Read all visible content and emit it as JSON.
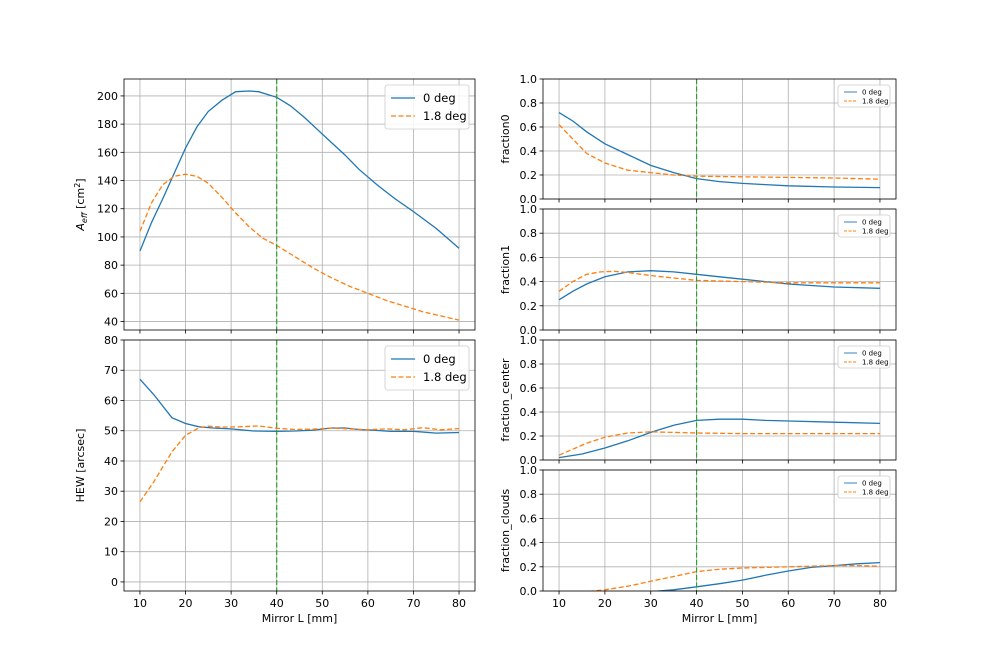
{
  "colors": {
    "series_0deg": "#1f77b4",
    "series_1p8deg": "#ff7f0e",
    "vline": "#2ca02c",
    "grid": "#b0b0b0"
  },
  "chart_data": [
    {
      "id": "aeff",
      "type": "line",
      "ylabel_main": "A",
      "ylabel_sub": "eff",
      "ylabel_unit_pre": " [cm",
      "ylabel_unit_sup": "2",
      "ylabel_unit_post": "]",
      "xlabel": "",
      "xlim": [
        6.5,
        83.5
      ],
      "ylim": [
        34,
        212
      ],
      "xticks": [
        10,
        20,
        30,
        40,
        50,
        60,
        70,
        80
      ],
      "yticks": [
        40,
        60,
        80,
        100,
        120,
        140,
        160,
        180,
        200
      ],
      "show_xticklabels": false,
      "vline_x": 40,
      "grid": true,
      "legend": "top-right",
      "series": [
        {
          "name": "0 deg",
          "style": "solid",
          "x": [
            10,
            12.5,
            15,
            17.5,
            20,
            22.5,
            25,
            28,
            31,
            34,
            36,
            38,
            40,
            43,
            46,
            49,
            52,
            55,
            58,
            62,
            66,
            70,
            75,
            80
          ],
          "y": [
            90,
            110,
            127,
            145,
            163,
            178,
            189,
            197,
            203,
            203.5,
            203,
            201,
            199,
            193,
            185,
            176,
            167,
            158,
            148,
            137,
            127,
            118,
            106,
            92
          ]
        },
        {
          "name": "1.8 deg",
          "style": "dashed",
          "x": [
            10,
            12.5,
            15,
            17.5,
            20,
            22.5,
            25,
            28,
            31,
            34,
            37,
            40,
            44,
            48,
            52,
            56,
            60,
            64,
            68,
            72,
            76,
            80
          ],
          "y": [
            104,
            124,
            137,
            143,
            144.5,
            143,
            138,
            128,
            117,
            107,
            99,
            94,
            86,
            78,
            71,
            65,
            60,
            55,
            51,
            47,
            44,
            41
          ]
        }
      ]
    },
    {
      "id": "hew",
      "type": "line",
      "ylabel": "HEW [arcsec]",
      "xlabel": "Mirror L [mm]",
      "xlim": [
        6.5,
        83.5
      ],
      "ylim": [
        -3,
        80
      ],
      "xticks": [
        10,
        20,
        30,
        40,
        50,
        60,
        70,
        80
      ],
      "yticks": [
        0,
        10,
        20,
        30,
        40,
        50,
        60,
        70,
        80
      ],
      "show_xticklabels": true,
      "vline_x": 40,
      "grid": true,
      "legend": "top-right",
      "series": [
        {
          "name": "0 deg",
          "style": "solid",
          "x": [
            10,
            13,
            17,
            20,
            23,
            26,
            30,
            35,
            40,
            44,
            48,
            52,
            55,
            58,
            61,
            65,
            70,
            75,
            80
          ],
          "y": [
            67,
            62,
            54.3,
            52.4,
            51.3,
            50.9,
            50.6,
            49.9,
            49.8,
            49.9,
            50.2,
            50.9,
            50.9,
            50.4,
            50.2,
            49.8,
            49.8,
            49.2,
            49.4
          ]
        },
        {
          "name": "1.8 deg",
          "style": "dashed",
          "x": [
            10,
            13,
            17,
            20,
            23,
            25,
            28,
            32,
            36,
            40,
            44,
            48,
            52,
            56,
            60,
            64,
            68,
            72,
            76,
            80
          ],
          "y": [
            26.5,
            33,
            43,
            48.5,
            51,
            51.5,
            51.2,
            51.3,
            51.6,
            50.8,
            50.4,
            50.5,
            50.9,
            50.6,
            50.3,
            50.6,
            50.3,
            51.0,
            50.3,
            50.7
          ]
        }
      ]
    },
    {
      "id": "fraction0",
      "type": "line",
      "ylabel": "fraction0",
      "xlabel": "",
      "xlim": [
        6.5,
        83.5
      ],
      "ylim": [
        0,
        1
      ],
      "xticks": [
        10,
        20,
        30,
        40,
        50,
        60,
        70,
        80
      ],
      "yticks": [
        0.0,
        0.2,
        0.4,
        0.6,
        0.8,
        1.0
      ],
      "show_xticklabels": false,
      "vline_x": 40,
      "grid": true,
      "legend": "top-right",
      "series": [
        {
          "name": "0 deg",
          "style": "solid",
          "x": [
            10,
            13,
            16,
            20,
            25,
            30,
            35,
            40,
            45,
            50,
            55,
            60,
            70,
            80
          ],
          "y": [
            0.72,
            0.65,
            0.56,
            0.46,
            0.37,
            0.28,
            0.22,
            0.17,
            0.145,
            0.13,
            0.12,
            0.11,
            0.1,
            0.095
          ]
        },
        {
          "name": "1.8 deg",
          "style": "dashed",
          "x": [
            10,
            13,
            16,
            20,
            25,
            30,
            35,
            40,
            50,
            60,
            70,
            80
          ],
          "y": [
            0.62,
            0.5,
            0.38,
            0.3,
            0.24,
            0.22,
            0.2,
            0.19,
            0.185,
            0.18,
            0.175,
            0.165
          ]
        }
      ]
    },
    {
      "id": "fraction1",
      "type": "line",
      "ylabel": "fraction1",
      "xlabel": "",
      "xlim": [
        6.5,
        83.5
      ],
      "ylim": [
        0,
        1
      ],
      "xticks": [
        10,
        20,
        30,
        40,
        50,
        60,
        70,
        80
      ],
      "yticks": [
        0.0,
        0.2,
        0.4,
        0.6,
        0.8,
        1.0
      ],
      "show_xticklabels": false,
      "vline_x": 40,
      "grid": true,
      "legend": "top-right",
      "series": [
        {
          "name": "0 deg",
          "style": "solid",
          "x": [
            10,
            13,
            16,
            20,
            25,
            30,
            35,
            40,
            45,
            50,
            55,
            60,
            70,
            80
          ],
          "y": [
            0.25,
            0.32,
            0.38,
            0.44,
            0.48,
            0.49,
            0.48,
            0.46,
            0.44,
            0.42,
            0.4,
            0.38,
            0.355,
            0.345
          ]
        },
        {
          "name": "1.8 deg",
          "style": "dashed",
          "x": [
            10,
            13,
            16,
            19,
            22,
            25,
            30,
            35,
            40,
            50,
            60,
            70,
            80
          ],
          "y": [
            0.32,
            0.4,
            0.46,
            0.48,
            0.485,
            0.475,
            0.45,
            0.43,
            0.41,
            0.4,
            0.39,
            0.39,
            0.39
          ]
        }
      ]
    },
    {
      "id": "fraction_center",
      "type": "line",
      "ylabel": "fraction_center",
      "xlabel": "",
      "xlim": [
        6.5,
        83.5
      ],
      "ylim": [
        0,
        1
      ],
      "xticks": [
        10,
        20,
        30,
        40,
        50,
        60,
        70,
        80
      ],
      "yticks": [
        0.0,
        0.2,
        0.4,
        0.6,
        0.8,
        1.0
      ],
      "show_xticklabels": false,
      "vline_x": 40,
      "grid": true,
      "legend": "top-right",
      "series": [
        {
          "name": "0 deg",
          "style": "solid",
          "x": [
            10,
            15,
            20,
            25,
            30,
            35,
            40,
            45,
            50,
            55,
            60,
            70,
            80
          ],
          "y": [
            0.02,
            0.05,
            0.1,
            0.16,
            0.23,
            0.29,
            0.33,
            0.34,
            0.34,
            0.33,
            0.325,
            0.315,
            0.305
          ]
        },
        {
          "name": "1.8 deg",
          "style": "dashed",
          "x": [
            10,
            13,
            16,
            20,
            25,
            30,
            35,
            40,
            50,
            60,
            70,
            80
          ],
          "y": [
            0.04,
            0.09,
            0.14,
            0.19,
            0.225,
            0.235,
            0.23,
            0.225,
            0.22,
            0.22,
            0.22,
            0.22
          ]
        }
      ]
    },
    {
      "id": "fraction_clouds",
      "type": "line",
      "ylabel": "fraction_clouds",
      "xlabel": "Mirror L [mm]",
      "xlim": [
        6.5,
        83.5
      ],
      "ylim": [
        0,
        1
      ],
      "xticks": [
        10,
        20,
        30,
        40,
        50,
        60,
        70,
        80
      ],
      "yticks": [
        0.0,
        0.2,
        0.4,
        0.6,
        0.8,
        1.0
      ],
      "show_xticklabels": true,
      "vline_x": 40,
      "grid": true,
      "legend": "top-right",
      "series": [
        {
          "name": "0 deg",
          "style": "solid",
          "x": [
            10,
            15,
            20,
            25,
            30,
            35,
            40,
            45,
            50,
            55,
            60,
            65,
            70,
            75,
            80
          ],
          "y": [
            -0.02,
            -0.015,
            -0.01,
            -0.01,
            -0.005,
            0.01,
            0.035,
            0.06,
            0.09,
            0.13,
            0.165,
            0.195,
            0.21,
            0.225,
            0.235
          ]
        },
        {
          "name": "1.8 deg",
          "style": "dashed",
          "x": [
            10,
            15,
            20,
            25,
            30,
            35,
            40,
            45,
            50,
            55,
            60,
            65,
            70,
            75,
            80
          ],
          "y": [
            -0.02,
            -0.01,
            0.01,
            0.04,
            0.08,
            0.12,
            0.16,
            0.18,
            0.19,
            0.195,
            0.2,
            0.205,
            0.21,
            0.21,
            0.205
          ]
        }
      ]
    }
  ]
}
